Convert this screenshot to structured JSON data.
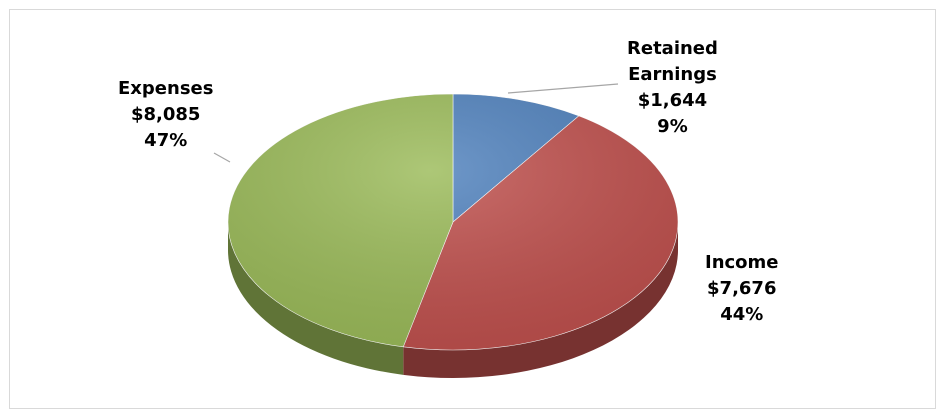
{
  "chart_data": {
    "type": "pie",
    "style": "3d",
    "slices": [
      {
        "name": "Retained Earnings",
        "name_lines": [
          "Retained",
          "Earnings"
        ],
        "value": 1644,
        "value_label": "$1,644",
        "percent": 9,
        "percent_label": "9%",
        "color": "#4f81bd"
      },
      {
        "name": "Income",
        "name_lines": [
          "Income"
        ],
        "value": 7676,
        "value_label": "$7,676",
        "percent": 44,
        "percent_label": "44%",
        "color": "#c0504d"
      },
      {
        "name": "Expenses",
        "name_lines": [
          "Expenses"
        ],
        "value": 8085,
        "value_label": "$8,085",
        "percent": 47,
        "percent_label": "47%",
        "color": "#9bbb59"
      }
    ],
    "legend": "none",
    "data_labels": "outside with leader lines"
  }
}
